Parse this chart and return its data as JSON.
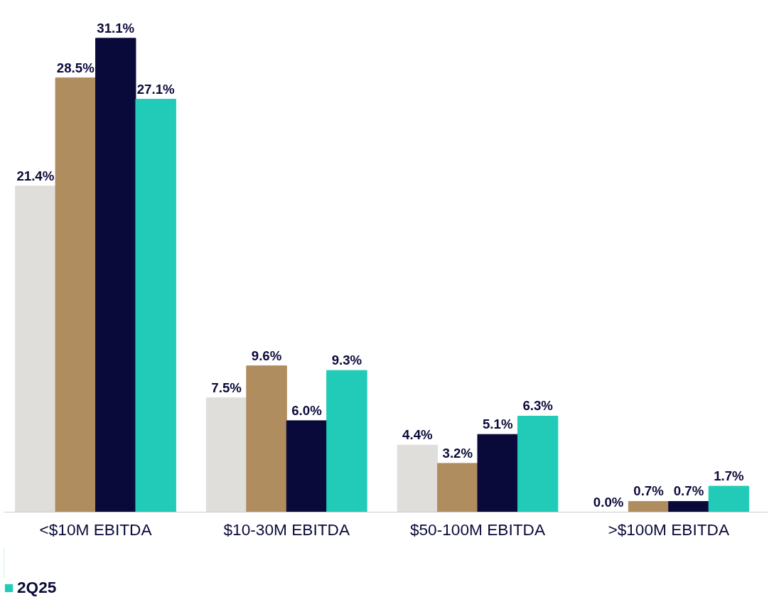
{
  "chart_data": {
    "type": "bar",
    "categories": [
      "<$10M EBITDA",
      "$10-30M EBITDA",
      "$50-100M EBITDA",
      ">$100M EBITDA"
    ],
    "grid": false,
    "legend": "bottom left",
    "series": [
      {
        "color": "#dfdedb",
        "values": [
          21.4,
          7.5,
          4.4,
          0.0
        ],
        "value_labels": [
          "21.4%",
          "7.5%",
          "4.4%",
          "0.0%"
        ]
      },
      {
        "color": "#b08d5f",
        "values": [
          28.5,
          9.6,
          3.2,
          0.7
        ],
        "value_labels": [
          "28.5%",
          "9.6%",
          "3.2%",
          "0.7%"
        ]
      },
      {
        "color": "#0a0a3a",
        "values": [
          31.1,
          6.0,
          5.1,
          0.7
        ],
        "value_labels": [
          "31.1%",
          "6.0%",
          "5.1%",
          "0.7%"
        ]
      },
      {
        "name": "2Q25",
        "color": "#21cbb8",
        "values": [
          27.1,
          9.3,
          6.3,
          1.7
        ],
        "value_labels": [
          "27.1%",
          "9.3%",
          "6.3%",
          "1.7%"
        ]
      }
    ]
  }
}
